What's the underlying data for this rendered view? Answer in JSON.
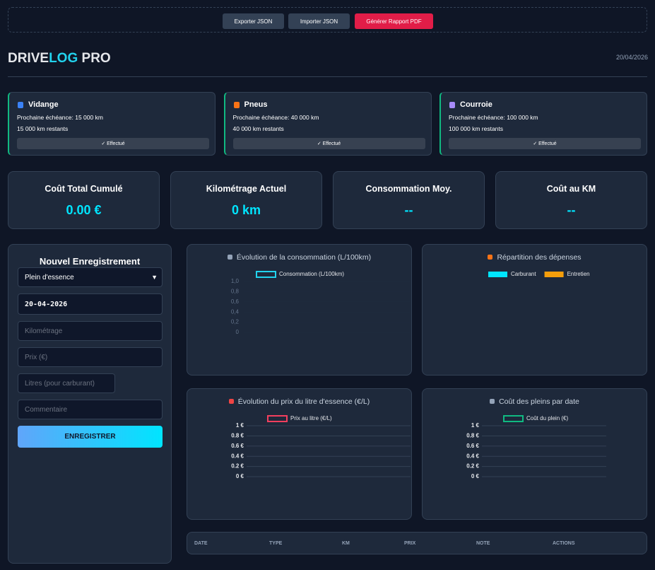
{
  "toolbar": {
    "buttons": [
      "Exporter JSON",
      "Importer JSON",
      "Générer Rapport PDF"
    ]
  },
  "header": {
    "brand": [
      "DRIVE",
      "LOG",
      "PRO"
    ],
    "date": "20/04/2026"
  },
  "maintenance": [
    {
      "title": "Vidange",
      "next": "Prochaine échéance: 15 000 km",
      "remaining": "15 000 km restants",
      "button": "✓ Effectué"
    },
    {
      "title": "Pneus",
      "next": "Prochaine échéance: 40 000 km",
      "remaining": "40 000 km restants",
      "button": "✓ Effectué"
    },
    {
      "title": "Courroie",
      "next": "Prochaine échéance: 100 000 km",
      "remaining": "100 000 km restants",
      "button": "✓ Effectué"
    }
  ],
  "stats": [
    {
      "label": "Coût Total Cumulé",
      "value": "0.00 €"
    },
    {
      "label": "Kilométrage Actuel",
      "value": "0 km"
    },
    {
      "label": "Consommation Moy.",
      "value": "--"
    },
    {
      "label": "Coût au KM",
      "value": "--"
    }
  ],
  "form": {
    "title": "Nouvel Enregistrement",
    "type": "Plein d'essence",
    "date": "20-04-2026",
    "placeholders": [
      "Kilométrage",
      "Prix (€)",
      "Litres (pour carburant)",
      "Commentaire"
    ],
    "submit": "ENREGISTRER"
  },
  "charts": [
    {
      "title": "Évolution de la consommation (L/100km)",
      "legend": [
        {
          "name": "Consommation (L/100km)",
          "color": "#22d3ee"
        }
      ],
      "ylim": [
        0,
        1
      ],
      "yticks": [
        {
          "value": 1,
          "label": "1,0"
        },
        {
          "value": 0.8,
          "label": "0,8"
        },
        {
          "value": 0.6,
          "label": "0,6"
        },
        {
          "value": 0.4,
          "label": "0,4"
        },
        {
          "value": 0.2,
          "label": "0,2"
        },
        0
      ]
    },
    {
      "title": "Répartition des dépenses",
      "legend": [
        {
          "name": "Carburant",
          "color": "#00e5ff"
        },
        {
          "name": "Entretien",
          "color": "#f59e0b"
        }
      ]
    },
    {
      "title": "Évolution du prix du litre d'essence (€/L)",
      "legend": [
        {
          "name": "Prix au litre (€/L)",
          "color": "#f43f5e"
        }
      ],
      "ylim": [
        0,
        1
      ],
      "yticks": [
        {
          "value": 1,
          "label": "1 €"
        },
        {
          "value": 0.8,
          "label": "0.8 €"
        },
        {
          "value": 0.6,
          "label": "0.6 €"
        },
        {
          "value": 0.4,
          "label": "0.4 €"
        },
        {
          "value": 0.2,
          "label": "0.2 €"
        },
        {
          "value": 0,
          "label": "0 €"
        }
      ]
    },
    {
      "title": "Coût des pleins par date",
      "legend": [
        {
          "name": "Coût du plein (€)",
          "color": "#10b981"
        }
      ],
      "ylim": [
        0,
        1
      ],
      "yticks": [
        {
          "value": 1,
          "label": "1 €"
        },
        {
          "value": 0.8,
          "label": "0.8 €"
        },
        {
          "value": 0.6,
          "label": "0.6 €"
        },
        {
          "value": 0.4,
          "label": "0.4 €"
        },
        {
          "value": 0.2,
          "label": "0.2 €"
        },
        {
          "value": 0,
          "label": "0 €"
        }
      ]
    }
  ],
  "table": {
    "columns": [
      "DATE",
      "TYPE",
      "KM",
      "PRIX",
      "NOTE",
      "ACTIONS"
    ]
  }
}
